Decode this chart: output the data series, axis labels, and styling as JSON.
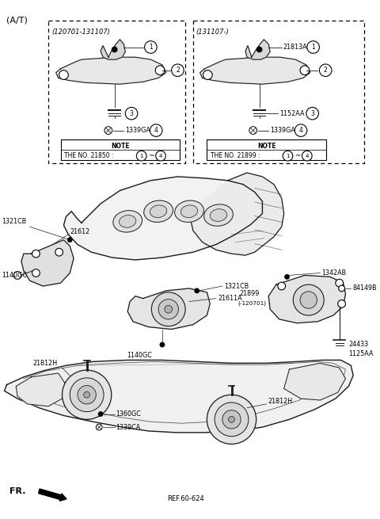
{
  "title": "(A/T)",
  "bg_color": "#ffffff",
  "line_color": "#1a1a1a",
  "fig_width": 4.8,
  "fig_height": 6.55,
  "dpi": 100,
  "header_box1_title": "(120701-131107)",
  "header_box2_title": "(131107-)",
  "fr_label": "FR.",
  "ref_label": "REF.60-624"
}
